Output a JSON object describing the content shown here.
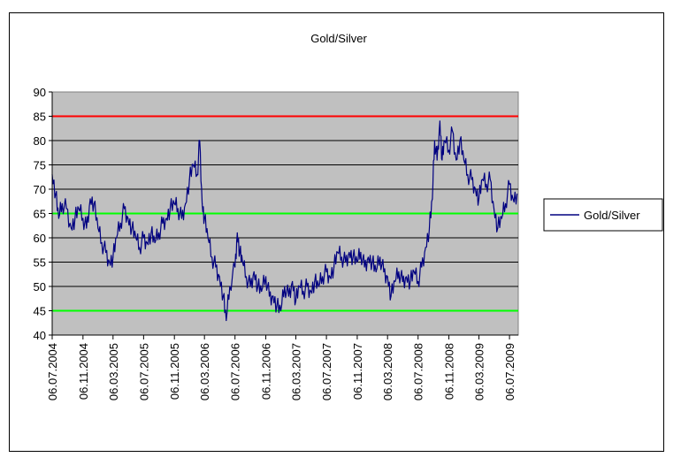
{
  "chart_data": {
    "type": "line",
    "title": "Gold/Silver",
    "xlabel": "",
    "ylabel": "",
    "ylim": [
      40,
      90
    ],
    "yticks": [
      40,
      45,
      50,
      55,
      60,
      65,
      70,
      75,
      80,
      85,
      90
    ],
    "xlim": [
      "2004-07-06",
      "2009-08-10"
    ],
    "xtick_labels": [
      "06.07.2004",
      "06.11.2004",
      "06.03.2005",
      "06.07.2005",
      "06.11.2005",
      "06.03.2006",
      "06.07.2006",
      "06.11.2006",
      "06.03.2007",
      "06.07.2007",
      "06.11.2007",
      "06.03.2008",
      "06.07.2008",
      "06.11.2008",
      "06.03.2009",
      "06.07.2009"
    ],
    "xtick_dates": [
      "2004-07-06",
      "2004-11-06",
      "2005-03-06",
      "2005-07-06",
      "2005-11-06",
      "2006-03-06",
      "2006-07-06",
      "2006-11-06",
      "2007-03-06",
      "2007-07-06",
      "2007-11-06",
      "2008-03-06",
      "2008-07-06",
      "2008-11-06",
      "2009-03-06",
      "2009-07-06"
    ],
    "grid": true,
    "plot_background": "#c0c0c0",
    "legend": {
      "position": "right",
      "entries": [
        "Gold/Silver"
      ]
    },
    "reference_lines": [
      {
        "y": 85,
        "color": "#ff0000"
      },
      {
        "y": 65,
        "color": "#00ff00"
      },
      {
        "y": 45,
        "color": "#00ff00"
      }
    ],
    "series": [
      {
        "name": "Gold/Silver",
        "color": "#000080",
        "points": [
          [
            "2004-07-06",
            73
          ],
          [
            "2004-07-20",
            69
          ],
          [
            "2004-08-01",
            64
          ],
          [
            "2004-08-15",
            67
          ],
          [
            "2004-09-01",
            66
          ],
          [
            "2004-09-20",
            62
          ],
          [
            "2004-10-05",
            64
          ],
          [
            "2004-10-20",
            66
          ],
          [
            "2004-11-06",
            64
          ],
          [
            "2004-11-20",
            62
          ],
          [
            "2004-12-05",
            68
          ],
          [
            "2004-12-20",
            67
          ],
          [
            "2005-01-05",
            62
          ],
          [
            "2005-01-20",
            59
          ],
          [
            "2005-02-05",
            57
          ],
          [
            "2005-02-20",
            55
          ],
          [
            "2005-03-06",
            56
          ],
          [
            "2005-03-20",
            60
          ],
          [
            "2005-04-05",
            63
          ],
          [
            "2005-04-20",
            66
          ],
          [
            "2005-05-05",
            64
          ],
          [
            "2005-05-20",
            62
          ],
          [
            "2005-06-05",
            60
          ],
          [
            "2005-06-20",
            58
          ],
          [
            "2005-07-06",
            60
          ],
          [
            "2005-07-20",
            59
          ],
          [
            "2005-08-05",
            61
          ],
          [
            "2005-08-20",
            59
          ],
          [
            "2005-09-05",
            61
          ],
          [
            "2005-09-20",
            63
          ],
          [
            "2005-10-05",
            64
          ],
          [
            "2005-10-20",
            66
          ],
          [
            "2005-11-06",
            67
          ],
          [
            "2005-11-20",
            66
          ],
          [
            "2005-12-05",
            64
          ],
          [
            "2005-12-20",
            67
          ],
          [
            "2006-01-05",
            72
          ],
          [
            "2006-01-20",
            75
          ],
          [
            "2006-02-05",
            73
          ],
          [
            "2006-02-15",
            80
          ],
          [
            "2006-02-25",
            67
          ],
          [
            "2006-03-06",
            64
          ],
          [
            "2006-03-20",
            60
          ],
          [
            "2006-04-05",
            56
          ],
          [
            "2006-04-20",
            54
          ],
          [
            "2006-05-05",
            52
          ],
          [
            "2006-05-20",
            48
          ],
          [
            "2006-06-01",
            43
          ],
          [
            "2006-06-15",
            50
          ],
          [
            "2006-07-06",
            54
          ],
          [
            "2006-07-15",
            61
          ],
          [
            "2006-07-25",
            57
          ],
          [
            "2006-08-05",
            55
          ],
          [
            "2006-08-20",
            52
          ],
          [
            "2006-09-05",
            50
          ],
          [
            "2006-09-20",
            53
          ],
          [
            "2006-10-05",
            50
          ],
          [
            "2006-10-20",
            49
          ],
          [
            "2006-11-06",
            52
          ],
          [
            "2006-11-20",
            48
          ],
          [
            "2006-12-05",
            48
          ],
          [
            "2006-12-20",
            46
          ],
          [
            "2007-01-05",
            45
          ],
          [
            "2007-01-20",
            50
          ],
          [
            "2007-02-05",
            48
          ],
          [
            "2007-02-20",
            51
          ],
          [
            "2007-03-06",
            47
          ],
          [
            "2007-03-20",
            50
          ],
          [
            "2007-04-05",
            49
          ],
          [
            "2007-04-20",
            50
          ],
          [
            "2007-05-05",
            49
          ],
          [
            "2007-05-20",
            51
          ],
          [
            "2007-06-05",
            50
          ],
          [
            "2007-06-20",
            52
          ],
          [
            "2007-07-06",
            53
          ],
          [
            "2007-07-20",
            52
          ],
          [
            "2007-08-05",
            54
          ],
          [
            "2007-08-20",
            57
          ],
          [
            "2007-09-05",
            56
          ],
          [
            "2007-09-20",
            55
          ],
          [
            "2007-10-05",
            57
          ],
          [
            "2007-10-20",
            56
          ],
          [
            "2007-11-06",
            55
          ],
          [
            "2007-11-20",
            57
          ],
          [
            "2007-12-05",
            54
          ],
          [
            "2007-12-20",
            56
          ],
          [
            "2008-01-05",
            55
          ],
          [
            "2008-01-20",
            53
          ],
          [
            "2008-02-05",
            56
          ],
          [
            "2008-02-20",
            53
          ],
          [
            "2008-03-06",
            52
          ],
          [
            "2008-03-20",
            48
          ],
          [
            "2008-04-05",
            51
          ],
          [
            "2008-04-20",
            53
          ],
          [
            "2008-05-05",
            51
          ],
          [
            "2008-05-20",
            52
          ],
          [
            "2008-06-05",
            51
          ],
          [
            "2008-06-20",
            53
          ],
          [
            "2008-07-06",
            51
          ],
          [
            "2008-07-20",
            54
          ],
          [
            "2008-08-05",
            58
          ],
          [
            "2008-08-20",
            62
          ],
          [
            "2008-09-01",
            68
          ],
          [
            "2008-09-10",
            80
          ],
          [
            "2008-09-20",
            76
          ],
          [
            "2008-10-01",
            84
          ],
          [
            "2008-10-10",
            76
          ],
          [
            "2008-10-20",
            80
          ],
          [
            "2008-11-06",
            78
          ],
          [
            "2008-11-20",
            82
          ],
          [
            "2008-12-05",
            76
          ],
          [
            "2008-12-20",
            80
          ],
          [
            "2009-01-05",
            76
          ],
          [
            "2009-01-20",
            73
          ],
          [
            "2009-02-05",
            72
          ],
          [
            "2009-02-20",
            70
          ],
          [
            "2009-03-06",
            68
          ],
          [
            "2009-03-20",
            72
          ],
          [
            "2009-04-05",
            71
          ],
          [
            "2009-04-20",
            72
          ],
          [
            "2009-05-05",
            66
          ],
          [
            "2009-05-20",
            62
          ],
          [
            "2009-06-05",
            64
          ],
          [
            "2009-06-20",
            67
          ],
          [
            "2009-07-06",
            71
          ],
          [
            "2009-07-20",
            68
          ],
          [
            "2009-08-05",
            69
          ]
        ]
      }
    ]
  }
}
